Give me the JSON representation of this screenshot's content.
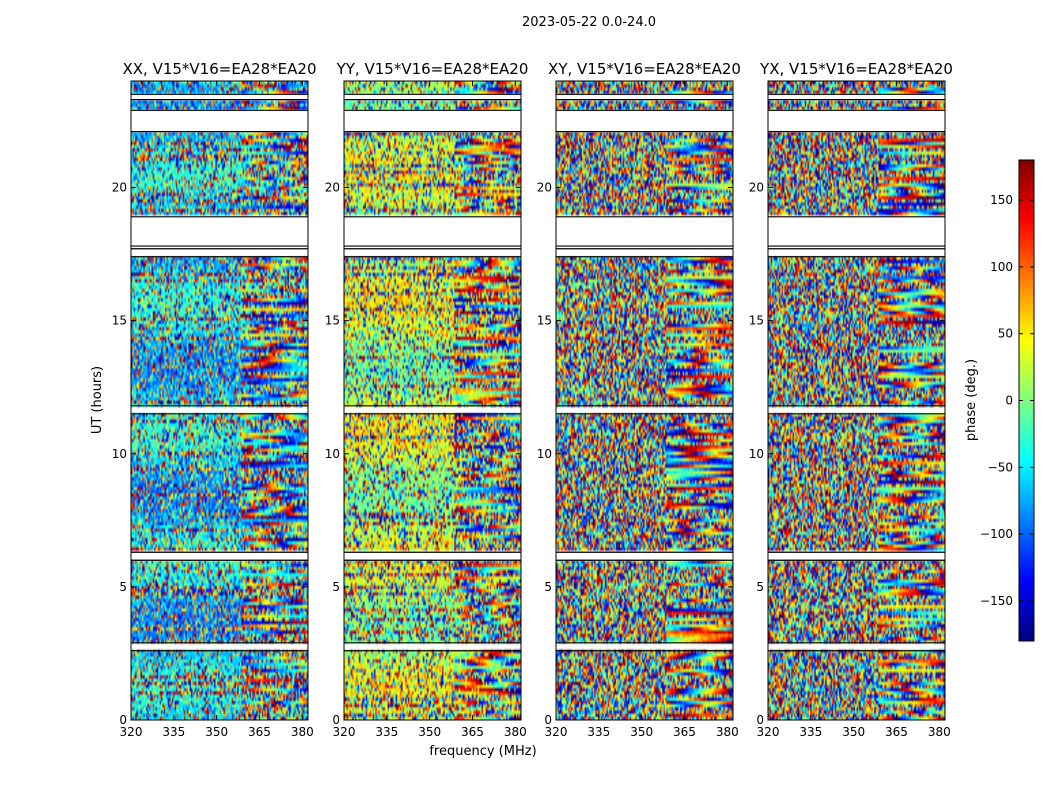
{
  "figure": {
    "suptitle": "2023-05-22 0.0-24.0"
  },
  "colorbar": {
    "label": "phase (deg.)",
    "colormap": "jet",
    "range": [
      -180,
      180
    ],
    "ticks": [
      150,
      100,
      50,
      0,
      -50,
      -100,
      -150
    ],
    "tick_labels": [
      "150",
      "100",
      "50",
      "0",
      "−50",
      "−100",
      "−150"
    ],
    "colors": [
      "#00007f",
      "#0000ff",
      "#007fff",
      "#00ffff",
      "#7fff7f",
      "#ffff00",
      "#ff7f00",
      "#ff0000",
      "#7f0000"
    ]
  },
  "chart_data": {
    "type": "heatmap",
    "xlabel": "frequency (MHz)",
    "ylabel": "UT (hours)",
    "xlim": [
      320,
      382
    ],
    "ylim": [
      0,
      24
    ],
    "x_ticks": [
      320,
      335,
      350,
      365,
      380
    ],
    "x_tick_labels": [
      "320",
      "335",
      "350",
      "365",
      "380"
    ],
    "y_ticks": [
      0,
      5,
      10,
      15,
      20
    ],
    "y_tick_labels": [
      "0",
      "5",
      "10",
      "15",
      "20"
    ],
    "value_label": "phase (deg.)",
    "value_range": [
      -180,
      180
    ],
    "flagged_time_ranges": [
      [
        2.6,
        2.9
      ],
      [
        6.0,
        6.3
      ],
      [
        11.5,
        11.8
      ],
      [
        17.4,
        17.7
      ],
      [
        17.8,
        18.9
      ],
      [
        22.1,
        22.9
      ],
      [
        23.3,
        23.5
      ]
    ],
    "panels": [
      {
        "title": "XX, V15*V16=EA28*EA20",
        "mean_phase": -60,
        "coherence": 0.55
      },
      {
        "title": "YY, V15*V16=EA28*EA20",
        "mean_phase": 20,
        "coherence": 0.55
      },
      {
        "title": "XY, V15*V16=EA28*EA20",
        "mean_phase": 0,
        "coherence": 0.0
      },
      {
        "title": "YX, V15*V16=EA28*EA20",
        "mean_phase": 0,
        "coherence": 0.0
      }
    ]
  }
}
